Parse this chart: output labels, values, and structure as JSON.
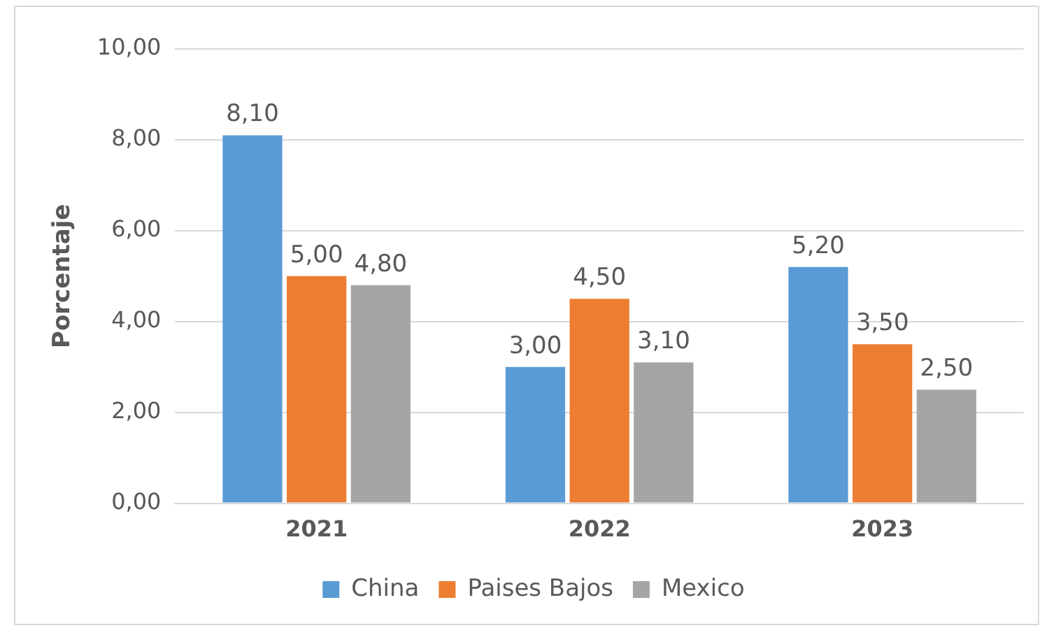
{
  "chart_data": {
    "type": "bar",
    "ylabel": "Porcentaje",
    "categories": [
      "2021",
      "2022",
      "2023"
    ],
    "series": [
      {
        "name": "China",
        "color": "#5b9bd5",
        "values": [
          8.1,
          3.0,
          5.2
        ],
        "value_labels": [
          "8,10",
          "3,00",
          "5,20"
        ]
      },
      {
        "name": "Paises Bajos",
        "color": "#ed7d31",
        "values": [
          5.0,
          4.5,
          3.5
        ],
        "value_labels": [
          "5,00",
          "4,50",
          "3,50"
        ]
      },
      {
        "name": "Mexico",
        "color": "#a5a5a5",
        "values": [
          4.8,
          3.1,
          2.5
        ],
        "value_labels": [
          "4,80",
          "3,10",
          "2,50"
        ]
      }
    ],
    "ylim": [
      0,
      10
    ],
    "yticks": [
      {
        "value": 0,
        "label": "0,00"
      },
      {
        "value": 2,
        "label": "2,00"
      },
      {
        "value": 4,
        "label": "4,00"
      },
      {
        "value": 6,
        "label": "6,00"
      },
      {
        "value": 8,
        "label": "8,00"
      },
      {
        "value": 10,
        "label": "10,00"
      }
    ],
    "grid": "y",
    "legend": "bottom"
  }
}
